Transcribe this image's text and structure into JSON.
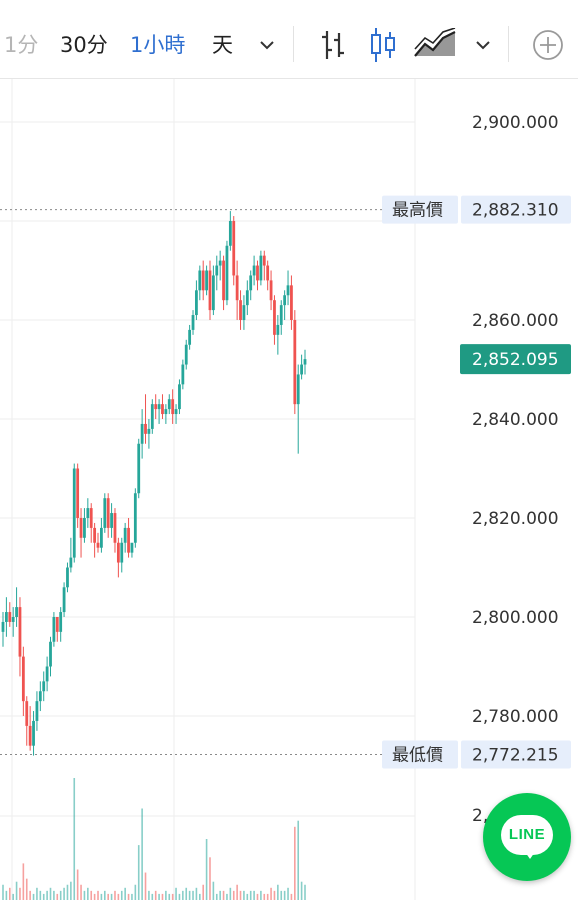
{
  "toolbar": {
    "interval_1m": "1分",
    "interval_30m": "30分",
    "interval_1h": "1小時",
    "interval_day": "天",
    "more_intervals_icon": "chevron-down-icon",
    "bar_style_icon": "ohlc-bars-icon",
    "candle_style_icon": "candlestick-icon",
    "area_style_icon": "mountain-chart-icon",
    "more_styles_icon": "chevron-down-icon",
    "add_indicator_icon": "plus-circle-icon",
    "active_interval": "1小時"
  },
  "price_axis": {
    "labels": [
      "2,900.000",
      "2,860.000",
      "2,840.000",
      "2,820.000",
      "2,800.000",
      "2,780.000"
    ]
  },
  "markers": {
    "high_label": "最高價",
    "high_value": "2,882.310",
    "low_label": "最低價",
    "low_value": "2,772.215",
    "current_value": "2,852.095"
  },
  "volume_axis_partial": "2,",
  "line_button_text": "LINE",
  "colors": {
    "up": "#26a69a",
    "down": "#ef5350",
    "current_tag": "#1f9a83",
    "tag_bg": "#e6eefb",
    "active_interval": "#2f6fd0",
    "line_green": "#06c755"
  },
  "chart_data": {
    "type": "candlestick",
    "y_ticks": [
      2780,
      2800,
      2820,
      2840,
      2860,
      2880,
      2900
    ],
    "ylim": [
      2764,
      2904
    ],
    "high": 2882.31,
    "low": 2772.215,
    "last": 2852.095,
    "grid": true,
    "candles": [
      [
        2797,
        2801,
        2794,
        2799
      ],
      [
        2799,
        2804,
        2796,
        2801
      ],
      [
        2801,
        2803,
        2798,
        2799
      ],
      [
        2799,
        2802,
        2796,
        2800
      ],
      [
        2800,
        2806,
        2798,
        2802
      ],
      [
        2802,
        2804,
        2788,
        2792
      ],
      [
        2792,
        2794,
        2780,
        2783
      ],
      [
        2783,
        2784,
        2774,
        2778
      ],
      [
        2778,
        2782,
        2773,
        2774
      ],
      [
        2774,
        2781,
        2772,
        2779
      ],
      [
        2779,
        2785,
        2777,
        2783
      ],
      [
        2783,
        2787,
        2781,
        2785
      ],
      [
        2785,
        2789,
        2783,
        2787
      ],
      [
        2787,
        2792,
        2785,
        2790
      ],
      [
        2790,
        2796,
        2788,
        2795
      ],
      [
        2795,
        2801,
        2794,
        2800
      ],
      [
        2800,
        2799,
        2795,
        2797
      ],
      [
        2797,
        2802,
        2795,
        2801
      ],
      [
        2801,
        2807,
        2800,
        2806
      ],
      [
        2806,
        2811,
        2805,
        2810
      ],
      [
        2810,
        2816,
        2809,
        2812
      ],
      [
        2812,
        2831,
        2811,
        2830
      ],
      [
        2830,
        2831,
        2818,
        2820
      ],
      [
        2820,
        2822,
        2812,
        2816
      ],
      [
        2816,
        2822,
        2815,
        2820
      ],
      [
        2820,
        2824,
        2818,
        2822
      ],
      [
        2822,
        2823,
        2815,
        2818
      ],
      [
        2818,
        2819,
        2812,
        2815
      ],
      [
        2815,
        2817,
        2813,
        2814
      ],
      [
        2814,
        2820,
        2813,
        2818
      ],
      [
        2818,
        2825,
        2817,
        2824
      ],
      [
        2824,
        2825,
        2816,
        2818
      ],
      [
        2818,
        2823,
        2816,
        2821
      ],
      [
        2821,
        2822,
        2813,
        2815
      ],
      [
        2815,
        2816,
        2808,
        2811
      ],
      [
        2811,
        2816,
        2809,
        2815
      ],
      [
        2815,
        2819,
        2813,
        2818
      ],
      [
        2818,
        2820,
        2812,
        2813
      ],
      [
        2813,
        2814,
        2812,
        2815
      ],
      [
        2815,
        2826,
        2814,
        2825
      ],
      [
        2825,
        2836,
        2824,
        2835
      ],
      [
        2835,
        2842,
        2832,
        2839
      ],
      [
        2839,
        2845,
        2835,
        2837
      ],
      [
        2837,
        2840,
        2834,
        2838
      ],
      [
        2838,
        2844,
        2837,
        2843
      ],
      [
        2843,
        2845,
        2840,
        2842
      ],
      [
        2842,
        2844,
        2839,
        2843
      ],
      [
        2843,
        2845,
        2840,
        2841
      ],
      [
        2841,
        2843,
        2839,
        2842
      ],
      [
        2842,
        2845,
        2841,
        2844
      ],
      [
        2844,
        2846,
        2839,
        2841
      ],
      [
        2841,
        2843,
        2839,
        2842
      ],
      [
        2842,
        2848,
        2841,
        2847
      ],
      [
        2847,
        2852,
        2846,
        2851
      ],
      [
        2851,
        2856,
        2850,
        2855
      ],
      [
        2855,
        2859,
        2854,
        2858
      ],
      [
        2858,
        2862,
        2857,
        2861
      ],
      [
        2861,
        2868,
        2860,
        2866
      ],
      [
        2866,
        2871,
        2864,
        2870
      ],
      [
        2870,
        2872,
        2864,
        2866
      ],
      [
        2866,
        2871,
        2865,
        2870
      ],
      [
        2870,
        2872,
        2860,
        2862
      ],
      [
        2862,
        2871,
        2861,
        2869
      ],
      [
        2869,
        2873,
        2866,
        2871
      ],
      [
        2871,
        2874,
        2868,
        2872
      ],
      [
        2872,
        2873,
        2862,
        2864
      ],
      [
        2864,
        2876,
        2863,
        2875
      ],
      [
        2875,
        2882,
        2874,
        2880
      ],
      [
        2880,
        2881,
        2867,
        2869
      ],
      [
        2869,
        2872,
        2860,
        2864
      ],
      [
        2864,
        2866,
        2858,
        2860
      ],
      [
        2860,
        2865,
        2858,
        2863
      ],
      [
        2863,
        2868,
        2861,
        2866
      ],
      [
        2866,
        2870,
        2864,
        2869
      ],
      [
        2869,
        2873,
        2867,
        2871
      ],
      [
        2871,
        2872,
        2866,
        2868
      ],
      [
        2868,
        2874,
        2867,
        2873
      ],
      [
        2873,
        2874,
        2868,
        2871
      ],
      [
        2871,
        2872,
        2866,
        2868
      ],
      [
        2868,
        2870,
        2862,
        2864
      ],
      [
        2864,
        2865,
        2855,
        2857
      ],
      [
        2857,
        2861,
        2853,
        2859
      ],
      [
        2859,
        2864,
        2857,
        2863
      ],
      [
        2863,
        2866,
        2860,
        2865
      ],
      [
        2865,
        2870,
        2863,
        2867
      ],
      [
        2867,
        2869,
        2858,
        2860
      ],
      [
        2860,
        2862,
        2841,
        2843
      ],
      [
        2843,
        2851,
        2833,
        2849
      ],
      [
        2849,
        2853,
        2848,
        2851
      ],
      [
        2851,
        2854,
        2849,
        2852.095
      ]
    ],
    "volume": [
      5,
      3,
      4,
      2,
      6,
      4,
      12,
      7,
      3,
      2,
      4,
      3,
      2,
      3,
      4,
      3,
      2,
      3,
      4,
      5,
      6,
      40,
      10,
      5,
      3,
      4,
      3,
      2,
      3,
      2,
      3,
      2,
      2,
      3,
      2,
      3,
      4,
      2,
      2,
      5,
      18,
      30,
      9,
      3,
      2,
      3,
      2,
      2,
      3,
      2,
      2,
      4,
      2,
      3,
      4,
      3,
      3,
      4,
      2,
      5,
      20,
      14,
      6,
      2,
      3,
      3,
      2,
      4,
      3,
      5,
      3,
      3,
      2,
      3,
      3,
      2,
      3,
      2,
      2,
      4,
      3,
      5,
      3,
      3,
      4,
      2,
      24,
      26,
      6,
      5
    ]
  }
}
